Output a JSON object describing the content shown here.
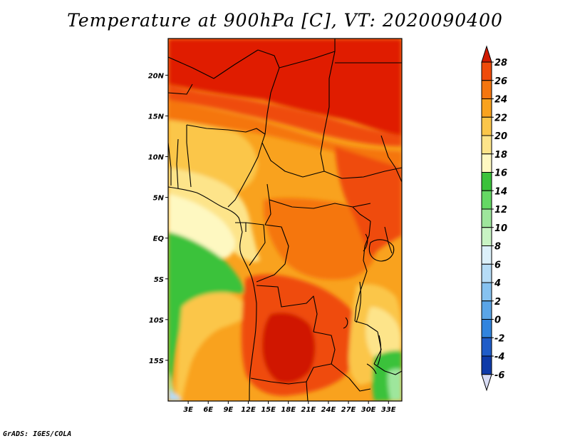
{
  "title": "Temperature at 900hPa [C], VT: 2020090400",
  "credit": "GrADS: IGES/COLA",
  "map": {
    "variable": "Temperature at 900hPa",
    "units": "C",
    "valid_time": "2020090400",
    "lon_range": [
      0,
      35
    ],
    "lat_range": [
      -20,
      24.5
    ],
    "lon_ticks": [
      {
        "value": 3,
        "label": "3E"
      },
      {
        "value": 6,
        "label": "6E"
      },
      {
        "value": 9,
        "label": "9E"
      },
      {
        "value": 12,
        "label": "12E"
      },
      {
        "value": 15,
        "label": "15E"
      },
      {
        "value": 18,
        "label": "18E"
      },
      {
        "value": 21,
        "label": "21E"
      },
      {
        "value": 24,
        "label": "24E"
      },
      {
        "value": 27,
        "label": "27E"
      },
      {
        "value": 30,
        "label": "30E"
      },
      {
        "value": 33,
        "label": "33E"
      }
    ],
    "lat_ticks": [
      {
        "value": 20,
        "label": "20N"
      },
      {
        "value": 15,
        "label": "15N"
      },
      {
        "value": 10,
        "label": "10N"
      },
      {
        "value": 5,
        "label": "5N"
      },
      {
        "value": 0,
        "label": "EQ"
      },
      {
        "value": -5,
        "label": "5S"
      },
      {
        "value": -10,
        "label": "10S"
      },
      {
        "value": -15,
        "label": "15S"
      }
    ]
  },
  "colorbar": {
    "labels": [
      "28",
      "26",
      "24",
      "22",
      "20",
      "18",
      "16",
      "14",
      "12",
      "10",
      "8",
      "6",
      "4",
      "2",
      "0",
      "-2",
      "-4",
      "-6"
    ],
    "colors": [
      "#e01e00",
      "#ef4b0a",
      "#f5760f",
      "#f9a21e",
      "#fbc64a",
      "#fde48a",
      "#fef8c1",
      "#3bc23b",
      "#65d864",
      "#9ee69c",
      "#c8f4c4",
      "#dcf0fa",
      "#b6dcf6",
      "#86c2f0",
      "#5aa5e8",
      "#3184de",
      "#1f5cc8",
      "#0e3aa8",
      "#0a1678"
    ],
    "top_arrow_color": "#d01a00",
    "bottom_arrow_color": "#d8dcf4"
  }
}
